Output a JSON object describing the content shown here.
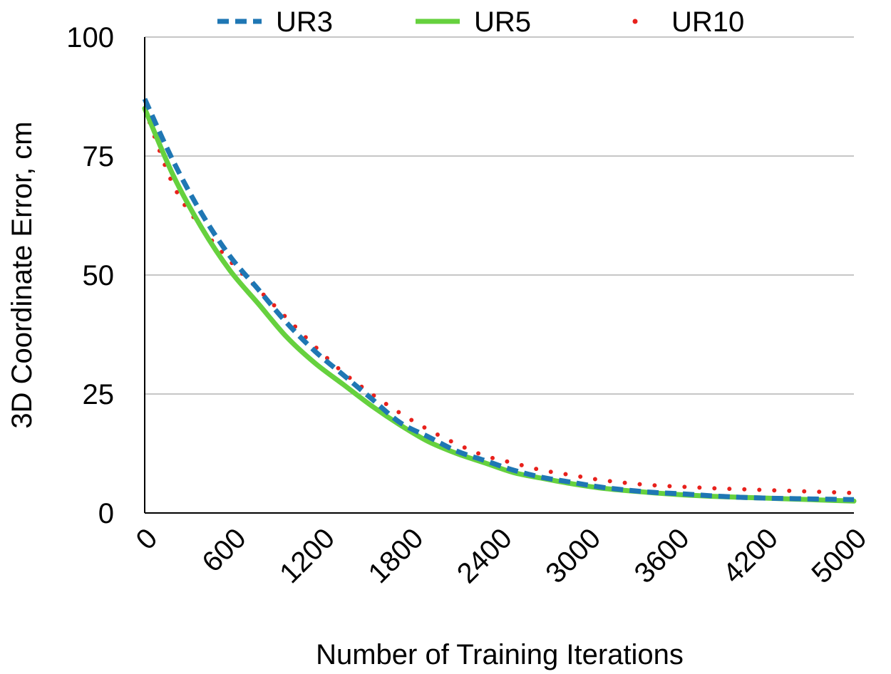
{
  "chart_data": {
    "type": "line",
    "title": "",
    "xlabel": "Number of Training Iterations",
    "ylabel": "3D Coordinate Error, cm",
    "xlim": [
      0,
      5000
    ],
    "ylim": [
      0,
      100
    ],
    "x_ticks": [
      "0",
      "600",
      "1200",
      "1800",
      "2400",
      "3000",
      "3600",
      "4200",
      "5000"
    ],
    "y_ticks": [
      "0",
      "25",
      "50",
      "75",
      "100"
    ],
    "grid": true,
    "legend_position": "top",
    "series": [
      {
        "name": "UR3",
        "style": "dashed",
        "color": "#1f77b4",
        "x": [
          0,
          200,
          400,
          600,
          800,
          1000,
          1200,
          1400,
          1600,
          1800,
          2000,
          2200,
          2400,
          2600,
          2800,
          3000,
          3200,
          3400,
          3600,
          3800,
          4000,
          4200,
          4400,
          4600,
          4800,
          5000
        ],
        "values": [
          87,
          74,
          63,
          54,
          47,
          40,
          34,
          29,
          24,
          19,
          16,
          13,
          11,
          9,
          7.5,
          6.5,
          5.5,
          4.8,
          4.3,
          4,
          3.6,
          3.3,
          3.1,
          3,
          2.9,
          2.8
        ]
      },
      {
        "name": "UR5",
        "style": "solid",
        "color": "#66d13e",
        "x": [
          0,
          200,
          400,
          600,
          800,
          1000,
          1200,
          1400,
          1600,
          1800,
          2000,
          2200,
          2400,
          2600,
          2800,
          3000,
          3200,
          3400,
          3600,
          3800,
          4000,
          4200,
          4400,
          4600,
          4800,
          5000
        ],
        "values": [
          85,
          71,
          60,
          51,
          44,
          37,
          31.5,
          27,
          22.5,
          18.5,
          15,
          12.5,
          10.5,
          8.5,
          7.3,
          6.2,
          5.3,
          4.7,
          4.2,
          3.8,
          3.5,
          3.3,
          3.1,
          2.9,
          2.7,
          2.5
        ]
      },
      {
        "name": "UR10",
        "style": "dotted",
        "color": "#e8211c",
        "x": [
          0,
          200,
          400,
          600,
          800,
          1000,
          1200,
          1400,
          1600,
          1800,
          2000,
          2200,
          2400,
          2600,
          2800,
          3000,
          3200,
          3400,
          3600,
          3800,
          4000,
          4200,
          4400,
          4600,
          4800,
          5000
        ],
        "values": [
          85,
          69,
          60,
          53,
          47,
          41,
          35,
          29.5,
          25,
          21,
          17.5,
          14.5,
          12,
          10.5,
          9,
          8,
          7,
          6.3,
          5.8,
          5.5,
          5.2,
          5,
          4.8,
          4.6,
          4.4,
          4.2
        ]
      }
    ]
  }
}
